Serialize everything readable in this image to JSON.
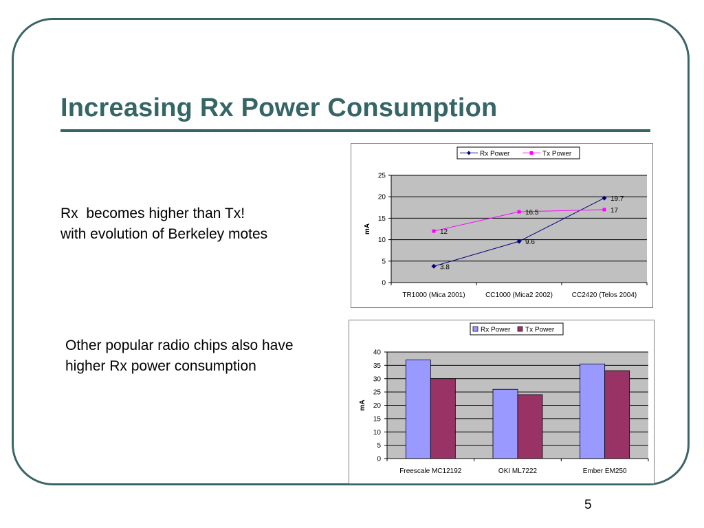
{
  "slide": {
    "title": "Increasing Rx Power Consumption",
    "text1_line1": "Rx  becomes higher than Tx!",
    "text1_line2": "with evolution of Berkeley motes",
    "text2_line1": "Other popular radio chips also have",
    "text2_line2": "higher Rx power consumption",
    "page_number": "5"
  },
  "colors": {
    "frame": "#3b6466",
    "title": "#356566",
    "rx_line": "#00007f",
    "tx_line": "#ff00ff",
    "rx_bar": "#9999ff",
    "tx_bar": "#993366",
    "plot_bg": "#c0c0c0"
  },
  "chart_data": [
    {
      "type": "line",
      "categories": [
        "TR1000 (Mica 2001)",
        "CC1000 (Mica2 2002)",
        "CC2420 (Telos 2004)"
      ],
      "series": [
        {
          "name": "Rx Power",
          "values": [
            3.8,
            9.6,
            19.7
          ],
          "labels": [
            "3.8",
            "9.6",
            "19.7"
          ]
        },
        {
          "name": "Tx Power",
          "values": [
            12,
            16.5,
            17
          ],
          "labels": [
            "12",
            "16.5",
            "17"
          ]
        }
      ],
      "title": "",
      "xlabel": "",
      "ylabel": "mA",
      "ylim": [
        0,
        25
      ],
      "yticks": [
        "0",
        "5",
        "10",
        "15",
        "20",
        "25"
      ],
      "grid": true,
      "legend": "top"
    },
    {
      "type": "bar",
      "categories": [
        "Freescale MC12192",
        "OKI ML7222",
        "Ember EM250"
      ],
      "series": [
        {
          "name": "Rx Power",
          "values": [
            37,
            26,
            35.5
          ]
        },
        {
          "name": "Tx Power",
          "values": [
            30,
            24,
            33
          ]
        }
      ],
      "title": "",
      "xlabel": "",
      "ylabel": "mA",
      "ylim": [
        0,
        40
      ],
      "yticks": [
        "0",
        "5",
        "10",
        "15",
        "20",
        "25",
        "30",
        "35",
        "40"
      ],
      "grid": true,
      "legend": "top"
    }
  ]
}
